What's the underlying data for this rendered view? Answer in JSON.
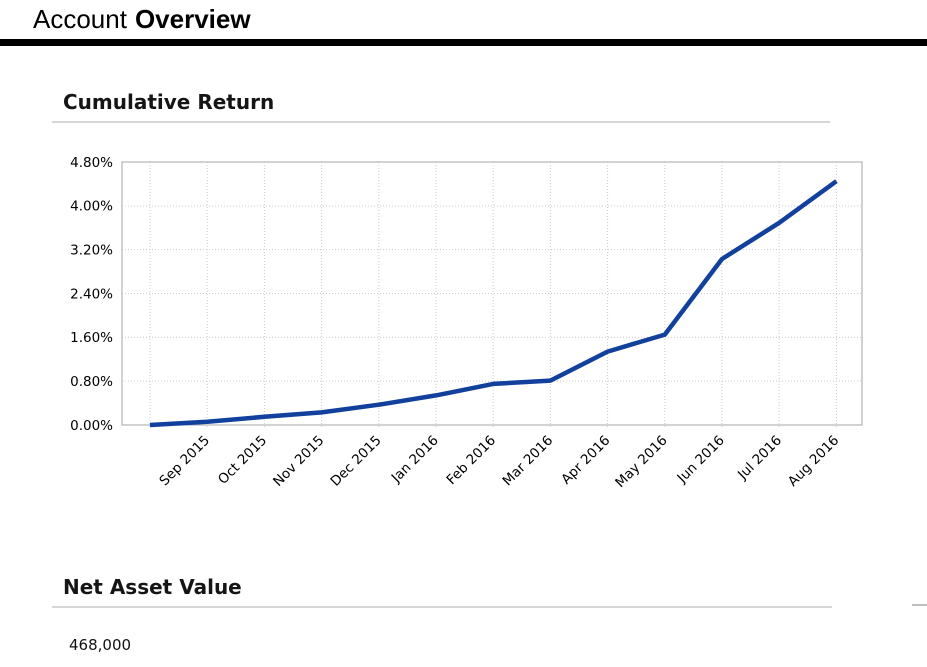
{
  "header": {
    "title_regular": "Account",
    "title_bold": "Overview"
  },
  "sections": {
    "cumulative_return": {
      "heading": "Cumulative Return"
    },
    "net_asset_value": {
      "heading": "Net Asset Value",
      "value": "468,000"
    }
  },
  "colors": {
    "line": "#11409d",
    "grid": "#cccccc",
    "plot_border": "#b3b3b3",
    "axis_text": "#000000",
    "title_rule": "#000000",
    "heading_rule": "#d6d6d6"
  },
  "chart_data": {
    "type": "line",
    "title": "Cumulative Return",
    "x_labels": [
      "",
      "Sep 2015",
      "Oct 2015",
      "Nov 2015",
      "Dec 2015",
      "Jan 2016",
      "Feb 2016",
      "Mar 2016",
      "Apr 2016",
      "May 2016",
      "Jun 2016",
      "Jul 2016",
      "Aug 2016"
    ],
    "values": [
      0.0,
      0.06,
      0.15,
      0.23,
      0.37,
      0.54,
      0.75,
      0.81,
      1.34,
      1.65,
      3.03,
      3.69,
      4.45
    ],
    "y_tick_labels": [
      "0.00%",
      "0.80%",
      "1.60%",
      "2.40%",
      "3.20%",
      "4.00%",
      "4.80%"
    ],
    "ylim": [
      0,
      4.8
    ],
    "xlabel": "",
    "ylabel": "",
    "grid": true,
    "legend": "none",
    "x_label_rotation_deg": -45
  }
}
